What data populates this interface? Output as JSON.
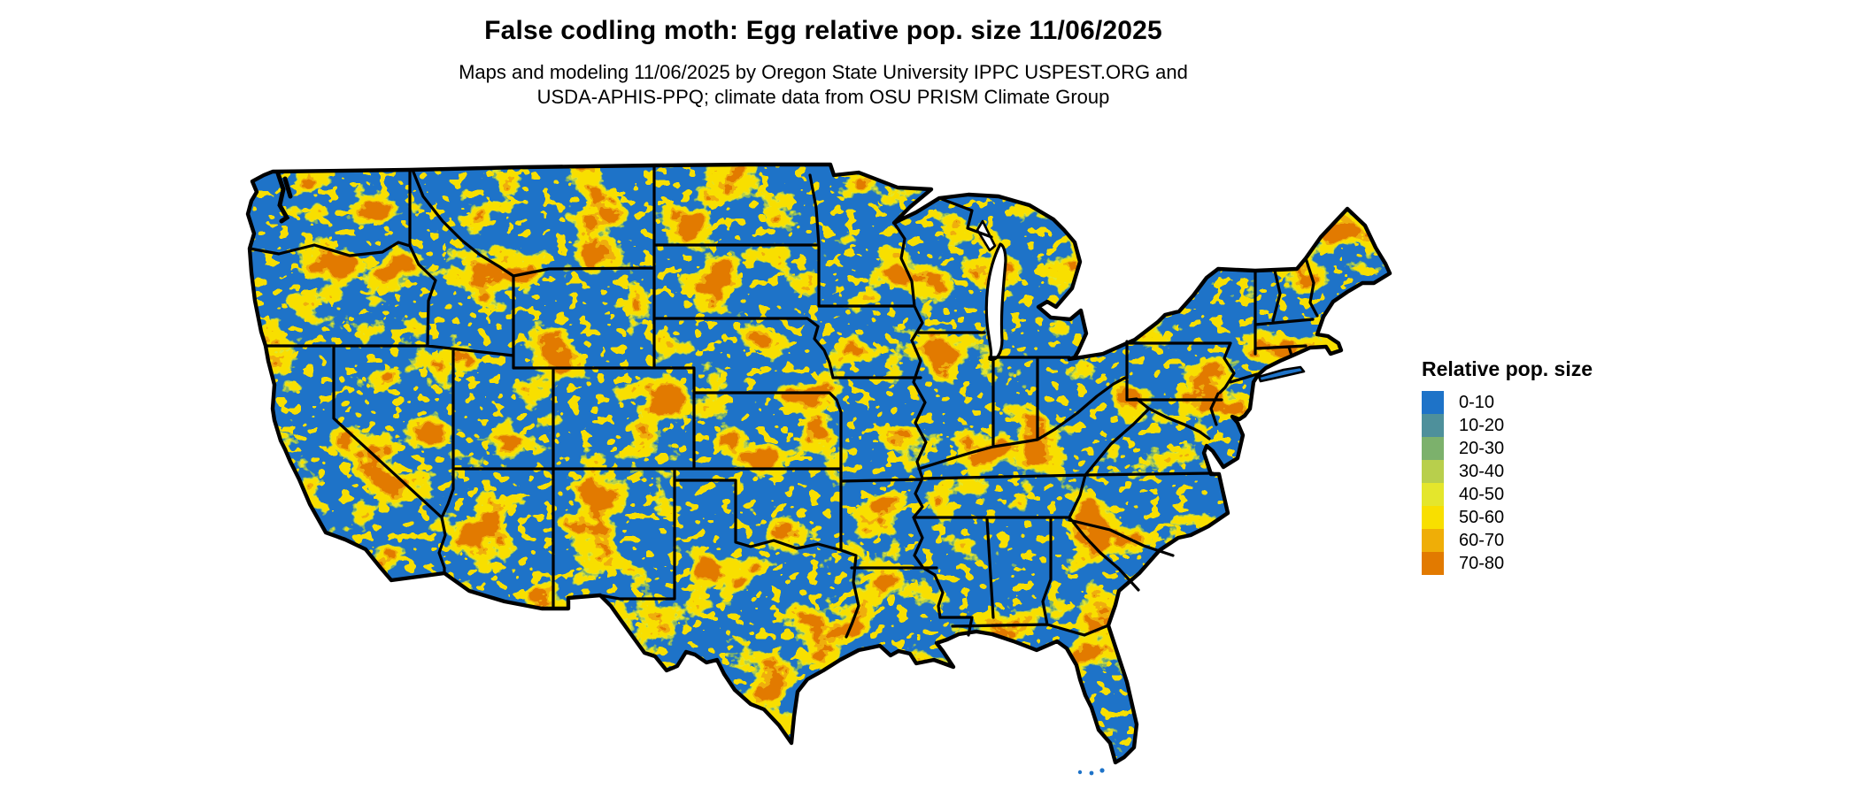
{
  "header": {
    "title": "False codling moth: Egg relative pop. size 11/06/2025",
    "subtitle": "Maps and modeling 11/06/2025 by Oregon State University IPPC USPEST.ORG and\nUSDA-APHIS-PPQ; climate data from OSU PRISM Climate Group"
  },
  "legend": {
    "title": "Relative pop. size",
    "items": [
      {
        "label": "0-10",
        "color": "#1E73C8"
      },
      {
        "label": "10-20",
        "color": "#4E909B"
      },
      {
        "label": "20-30",
        "color": "#7CB16C"
      },
      {
        "label": "30-40",
        "color": "#B8CF4C"
      },
      {
        "label": "40-50",
        "color": "#E4E62C"
      },
      {
        "label": "50-60",
        "color": "#F8DF00"
      },
      {
        "label": "60-70",
        "color": "#EFAE07"
      },
      {
        "label": "70-80",
        "color": "#E27A00"
      }
    ]
  },
  "map": {
    "region": "Contiguous United States",
    "boundary_color": "#000000",
    "water_color": "#FFFFFF"
  }
}
